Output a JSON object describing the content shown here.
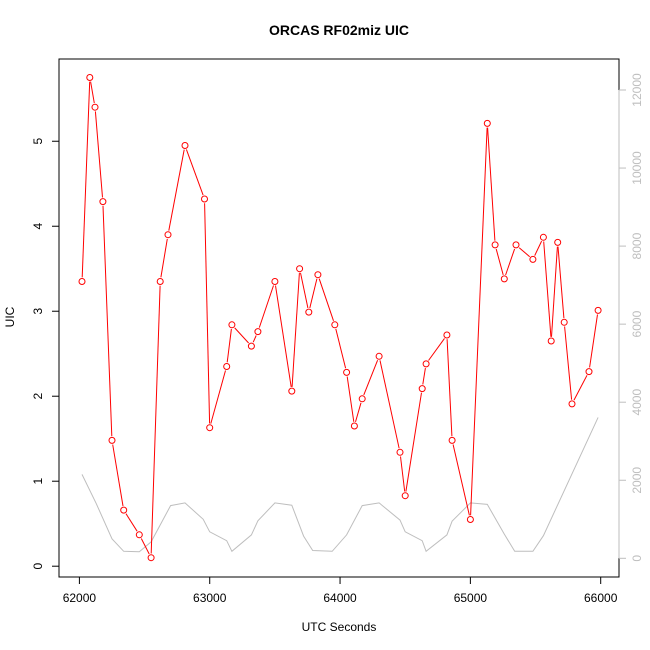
{
  "chart_data": {
    "type": "line",
    "title": "ORCAS RF02miz UIC",
    "xlabel": "UTC Seconds",
    "ylabel": "UIC",
    "xlim": [
      62000,
      66000
    ],
    "ylim": [
      0,
      5.75
    ],
    "y2lim": [
      0,
      12000
    ],
    "x_ticks": [
      62000,
      63000,
      64000,
      65000,
      66000
    ],
    "y_ticks": [
      0,
      1,
      2,
      3,
      4,
      5
    ],
    "y2_ticks": [
      0,
      2000,
      4000,
      6000,
      8000,
      10000,
      12000
    ],
    "grid": false,
    "colors": {
      "uic": "#ff0000",
      "altitude": "#bebebe",
      "axis": "#000000",
      "right_axis": "#bebebe"
    },
    "series": [
      {
        "axis": "left",
        "values": [
          [
            62020,
            3.35
          ],
          [
            62080,
            5.75
          ],
          [
            62120,
            5.4
          ],
          [
            62180,
            4.29
          ],
          [
            62250,
            1.48
          ],
          [
            62340,
            0.66
          ],
          [
            62460,
            0.37
          ],
          [
            62550,
            0.1
          ],
          [
            62620,
            3.35
          ],
          [
            62680,
            3.9
          ],
          [
            62810,
            4.95
          ],
          [
            62960,
            4.32
          ],
          [
            63000,
            1.63
          ],
          [
            63130,
            2.35
          ],
          [
            63170,
            2.84
          ],
          [
            63320,
            2.59
          ],
          [
            63370,
            2.76
          ],
          [
            63500,
            3.35
          ],
          [
            63630,
            2.06
          ],
          [
            63690,
            3.5
          ],
          [
            63760,
            2.99
          ],
          [
            63830,
            3.43
          ],
          [
            63960,
            2.84
          ],
          [
            64050,
            2.28
          ],
          [
            64110,
            1.65
          ],
          [
            64170,
            1.97
          ],
          [
            64300,
            2.47
          ],
          [
            64460,
            1.34
          ],
          [
            64500,
            0.83
          ],
          [
            64630,
            2.09
          ],
          [
            64660,
            2.38
          ],
          [
            64820,
            2.72
          ],
          [
            64860,
            1.48
          ],
          [
            65000,
            0.55
          ],
          [
            65130,
            5.21
          ],
          [
            65190,
            3.78
          ],
          [
            65260,
            3.38
          ],
          [
            65350,
            3.78
          ],
          [
            65480,
            3.61
          ],
          [
            65560,
            3.87
          ],
          [
            65620,
            2.65
          ],
          [
            65670,
            3.81
          ],
          [
            65720,
            2.87
          ],
          [
            65780,
            1.91
          ],
          [
            65910,
            2.29
          ],
          [
            65980,
            3.01
          ]
        ]
      },
      {
        "axis": "right",
        "values": [
          [
            62020,
            2150
          ],
          [
            62130,
            1400
          ],
          [
            62250,
            500
          ],
          [
            62340,
            180
          ],
          [
            62460,
            170
          ],
          [
            62550,
            420
          ],
          [
            62700,
            1350
          ],
          [
            62810,
            1420
          ],
          [
            62950,
            1000
          ],
          [
            63000,
            680
          ],
          [
            63130,
            450
          ],
          [
            63170,
            180
          ],
          [
            63320,
            600
          ],
          [
            63370,
            960
          ],
          [
            63500,
            1420
          ],
          [
            63630,
            1360
          ],
          [
            63720,
            570
          ],
          [
            63790,
            200
          ],
          [
            63940,
            180
          ],
          [
            64050,
            600
          ],
          [
            64170,
            1350
          ],
          [
            64300,
            1420
          ],
          [
            64460,
            980
          ],
          [
            64500,
            680
          ],
          [
            64630,
            450
          ],
          [
            64660,
            180
          ],
          [
            64820,
            600
          ],
          [
            64860,
            950
          ],
          [
            65000,
            1420
          ],
          [
            65130,
            1380
          ],
          [
            65260,
            620
          ],
          [
            65340,
            180
          ],
          [
            65480,
            180
          ],
          [
            65560,
            580
          ],
          [
            65980,
            3610
          ]
        ]
      }
    ]
  }
}
